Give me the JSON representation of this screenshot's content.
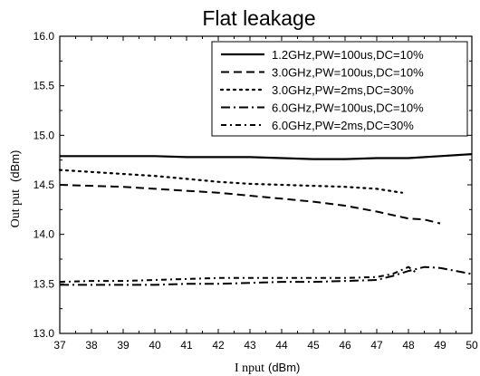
{
  "chart_data": {
    "type": "line",
    "title": "Flat leakage",
    "xlabel": "I nput",
    "xunit": "(dBm)",
    "ylabel": "Out put",
    "yunit": "(dBm)",
    "xlim": [
      37,
      50
    ],
    "ylim": [
      13.0,
      16.0
    ],
    "xticks": [
      37,
      38,
      39,
      40,
      41,
      42,
      43,
      44,
      45,
      46,
      47,
      48,
      49,
      50
    ],
    "yticks": [
      "13.0",
      "13.5",
      "14.0",
      "14.5",
      "15.0",
      "15.5",
      "16.0"
    ],
    "grid": false,
    "legend_position": "top-right",
    "series": [
      {
        "name": "1.2GHz,PW=100us,DC=10%",
        "style": "solid",
        "x": [
          37,
          38,
          39,
          40,
          41,
          42,
          43,
          44,
          45,
          46,
          47,
          48,
          49,
          50
        ],
        "y": [
          14.79,
          14.79,
          14.79,
          14.79,
          14.78,
          14.78,
          14.78,
          14.77,
          14.76,
          14.76,
          14.77,
          14.77,
          14.79,
          14.81
        ]
      },
      {
        "name": "3.0GHz,PW=100us,DC=10%",
        "style": "dash",
        "x": [
          37,
          38,
          39,
          40,
          41,
          42,
          43,
          44,
          45,
          46,
          47,
          48,
          48.5,
          49
        ],
        "y": [
          14.5,
          14.49,
          14.48,
          14.46,
          14.44,
          14.42,
          14.39,
          14.36,
          14.33,
          14.29,
          14.23,
          14.16,
          14.15,
          14.11
        ]
      },
      {
        "name": "3.0GHz,PW=2ms,DC=30%",
        "style": "dot",
        "x": [
          37,
          38,
          39,
          40,
          41,
          42,
          43,
          44,
          45,
          46,
          47,
          47.8
        ],
        "y": [
          14.65,
          14.63,
          14.61,
          14.59,
          14.56,
          14.53,
          14.51,
          14.5,
          14.49,
          14.48,
          14.46,
          14.42
        ]
      },
      {
        "name": "6.0GHz,PW=100us,DC=10%",
        "style": "dashdot",
        "x": [
          37,
          38,
          39,
          40,
          41,
          42,
          43,
          44,
          45,
          46,
          47,
          47.5,
          48,
          48.5,
          49,
          50
        ],
        "y": [
          13.49,
          13.49,
          13.49,
          13.49,
          13.5,
          13.5,
          13.51,
          13.52,
          13.52,
          13.53,
          13.54,
          13.58,
          13.63,
          13.67,
          13.66,
          13.6
        ]
      },
      {
        "name": "6.0GHz,PW=2ms,DC=30%",
        "style": "dashdotshort",
        "x": [
          37,
          38,
          39,
          40,
          41,
          42,
          43,
          44,
          45,
          46,
          47,
          47.5,
          48,
          48.3
        ],
        "y": [
          13.52,
          13.53,
          13.53,
          13.54,
          13.55,
          13.56,
          13.56,
          13.56,
          13.56,
          13.56,
          13.57,
          13.6,
          13.67,
          13.6
        ]
      }
    ]
  }
}
